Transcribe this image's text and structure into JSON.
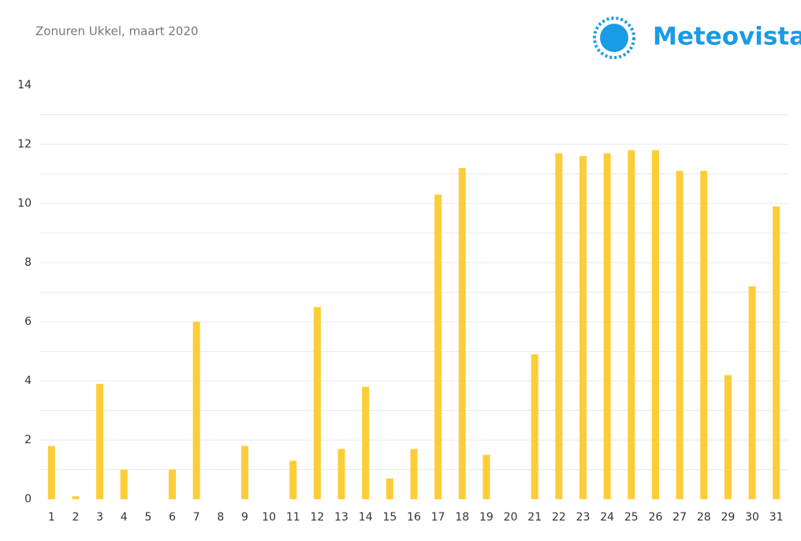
{
  "chart_data": {
    "type": "bar",
    "title": "Zonuren Ukkel, maart 2020",
    "brand": "Meteovista",
    "categories": [
      "1",
      "2",
      "3",
      "4",
      "5",
      "6",
      "7",
      "8",
      "9",
      "10",
      "11",
      "12",
      "13",
      "14",
      "15",
      "16",
      "17",
      "18",
      "19",
      "20",
      "21",
      "22",
      "23",
      "24",
      "25",
      "26",
      "27",
      "28",
      "29",
      "30",
      "31"
    ],
    "values": [
      1.8,
      0.1,
      3.9,
      1.0,
      0,
      1.0,
      6.0,
      0,
      1.8,
      0,
      1.3,
      6.5,
      1.7,
      3.8,
      0.7,
      1.7,
      10.3,
      11.2,
      1.5,
      0,
      4.9,
      11.7,
      11.6,
      11.7,
      11.8,
      11.8,
      11.1,
      11.1,
      4.2,
      7.2,
      9.9
    ],
    "color": "#fdcd37",
    "ylim": [
      0,
      14
    ],
    "yticks": [
      0,
      2,
      4,
      6,
      8,
      10,
      12,
      14
    ],
    "grid": true
  }
}
